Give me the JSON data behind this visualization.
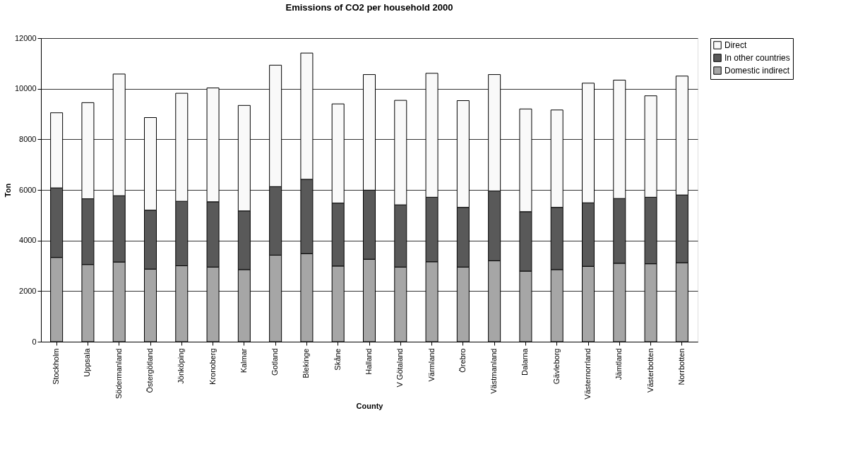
{
  "chart_data": {
    "type": "bar",
    "stacked": true,
    "title": "Emissions of CO2 per household 2000",
    "xlabel": "County",
    "ylabel": "Ton",
    "categories": [
      "Stockholm",
      "Uppsala",
      "Södermanland",
      "Östergötland",
      "Jönköping",
      "Kronoberg",
      "Kalmar",
      "Gotland",
      "Blekinge",
      "Skåne",
      "Halland",
      "V Götaland",
      "Värmland",
      "Örebro",
      "Västmanland",
      "Dalarna",
      "Gävleborg",
      "Västernorrland",
      "Jämtland",
      "Västerbotten",
      "Norrbotten"
    ],
    "series": [
      {
        "name": "Domestic indirect",
        "color": "#a6a6a6",
        "values": [
          3330,
          3050,
          3150,
          2870,
          3000,
          2950,
          2850,
          3420,
          3480,
          2990,
          3260,
          2950,
          3160,
          2950,
          3200,
          2790,
          2850,
          2980,
          3100,
          3080,
          3120
        ]
      },
      {
        "name": "In other countries",
        "color": "#595959",
        "values": [
          2750,
          2600,
          2620,
          2330,
          2550,
          2580,
          2320,
          2710,
          2940,
          2490,
          2730,
          2460,
          2550,
          2360,
          2760,
          2350,
          2460,
          2510,
          2560,
          2630,
          2680
        ]
      },
      {
        "name": "Direct",
        "color": "#f9f9f9",
        "values": [
          2970,
          3800,
          4810,
          3660,
          4270,
          4500,
          4170,
          4800,
          4990,
          3920,
          4570,
          4130,
          4900,
          4220,
          4600,
          4060,
          3850,
          4730,
          4680,
          4010,
          4700
        ]
      }
    ],
    "ylim": [
      0,
      12000
    ],
    "yticks": [
      0,
      2000,
      4000,
      6000,
      8000,
      10000,
      12000
    ],
    "grid": "y",
    "legend": "right"
  }
}
